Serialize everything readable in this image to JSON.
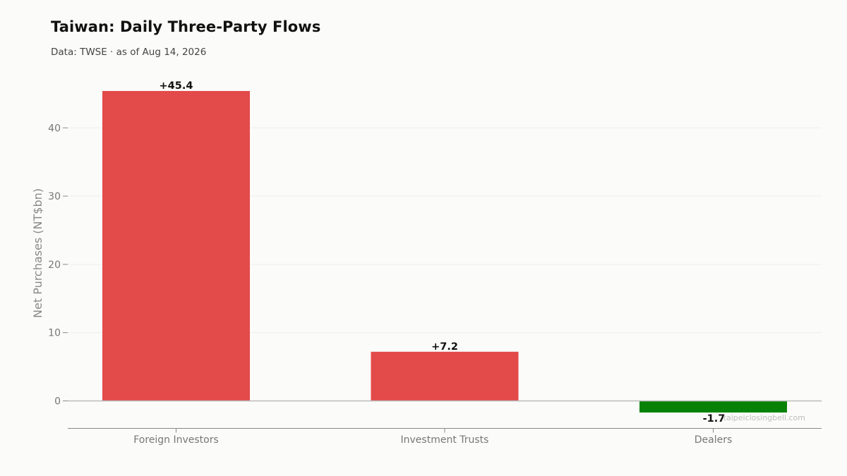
{
  "header": {
    "title": "Taiwan: Daily Three-Party Flows",
    "subtitle": "Data: TWSE · as of Aug 14, 2026"
  },
  "watermark": "taipeiclosingbell.com",
  "colors": {
    "positive": "#e34a4a",
    "negative": "#078207",
    "grid": "#eeeeee",
    "zero_line": "#bbbbbb",
    "axis": "#888888"
  },
  "chart_data": {
    "type": "bar",
    "title": "Taiwan: Daily Three-Party Flows",
    "xlabel": "",
    "ylabel": "Net Purchases (NT$bn)",
    "categories": [
      "Foreign Investors",
      "Investment Trusts",
      "Dealers"
    ],
    "values": [
      45.4,
      7.2,
      -1.7
    ],
    "data_labels": [
      "+45.4",
      "+7.2",
      "-1.7"
    ],
    "yticks": [
      0,
      10,
      20,
      30,
      40
    ],
    "ylim": [
      -4,
      49
    ],
    "grid": true,
    "legend": "none"
  }
}
